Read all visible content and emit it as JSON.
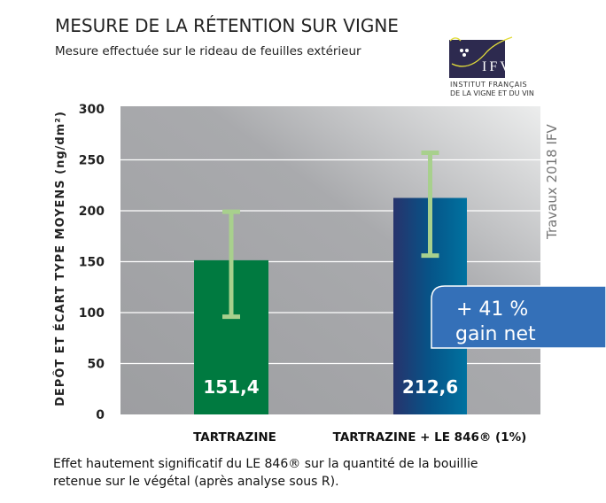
{
  "header": {
    "title": "MESURE DE LA RÉTENTION SUR VIGNE",
    "subtitle": "Mesure effectuée sur le rideau de feuilles extérieur"
  },
  "logo": {
    "mark": "IFV",
    "line1": "INSTITUT FRANÇAIS",
    "line2": "DE LA VIGNE ET DU VIN"
  },
  "credit": "Travaux 2018 IFV",
  "callout": {
    "line1": "+ 41 %",
    "line2": "gain net",
    "color": "#3470b8"
  },
  "footnote": {
    "line1": "Effet hautement significatif du LE 846® sur la quantité de la bouillie",
    "line2": "retenue sur le végétal (après analyse sous R)."
  },
  "chart_data": {
    "type": "bar",
    "title": "MESURE DE LA RÉTENTION SUR VIGNE",
    "ylabel": "DEPÔT ET ÉCART TYPE MOYENS (ng/dm²)",
    "xlabel": "",
    "ylim": [
      0,
      300
    ],
    "yticks": [
      "0",
      "50",
      "100",
      "150",
      "200",
      "250",
      "300"
    ],
    "grid": true,
    "categories": [
      "TARTRAZINE",
      "TARTRAZINE + LE 846® (1%)"
    ],
    "values": [
      151.4,
      212.6
    ],
    "value_labels": [
      "151,4",
      "212,6"
    ],
    "error_low": [
      96,
      156
    ],
    "error_high": [
      199,
      257
    ],
    "colors": [
      "#007a40",
      "#1f3a78"
    ],
    "error_color": "#a8d08d"
  }
}
